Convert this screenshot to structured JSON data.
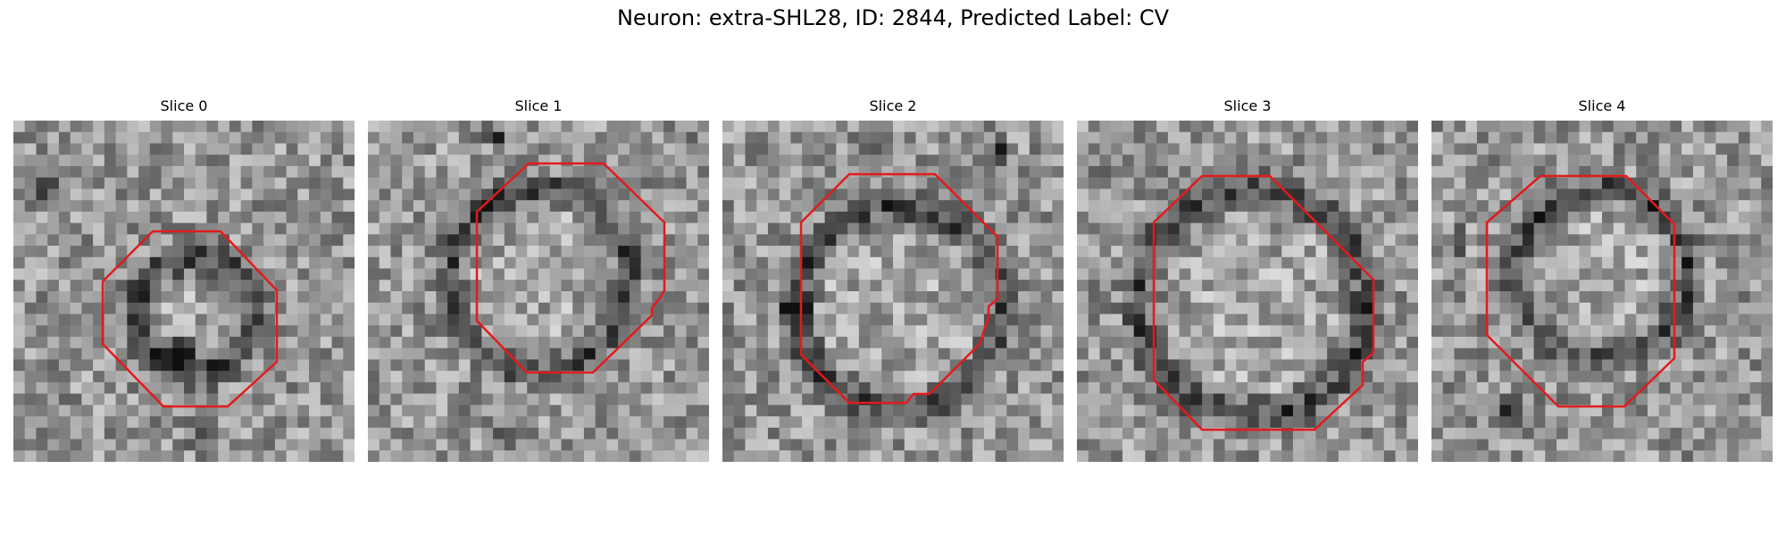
{
  "figure": {
    "title": "Neuron: extra-SHL28, ID: 2844, Predicted Label: CV"
  },
  "panels": [
    {
      "title": "Slice 0",
      "image": "grayscale-micrograph-slice-0",
      "outline_color": "#e41a1c"
    },
    {
      "title": "Slice 1",
      "image": "grayscale-micrograph-slice-1",
      "outline_color": "#e41a1c"
    },
    {
      "title": "Slice 2",
      "image": "grayscale-micrograph-slice-2",
      "outline_color": "#e41a1c"
    },
    {
      "title": "Slice 3",
      "image": "grayscale-micrograph-slice-3",
      "outline_color": "#e41a1c"
    },
    {
      "title": "Slice 4",
      "image": "grayscale-micrograph-slice-4",
      "outline_color": "#e41a1c"
    }
  ]
}
